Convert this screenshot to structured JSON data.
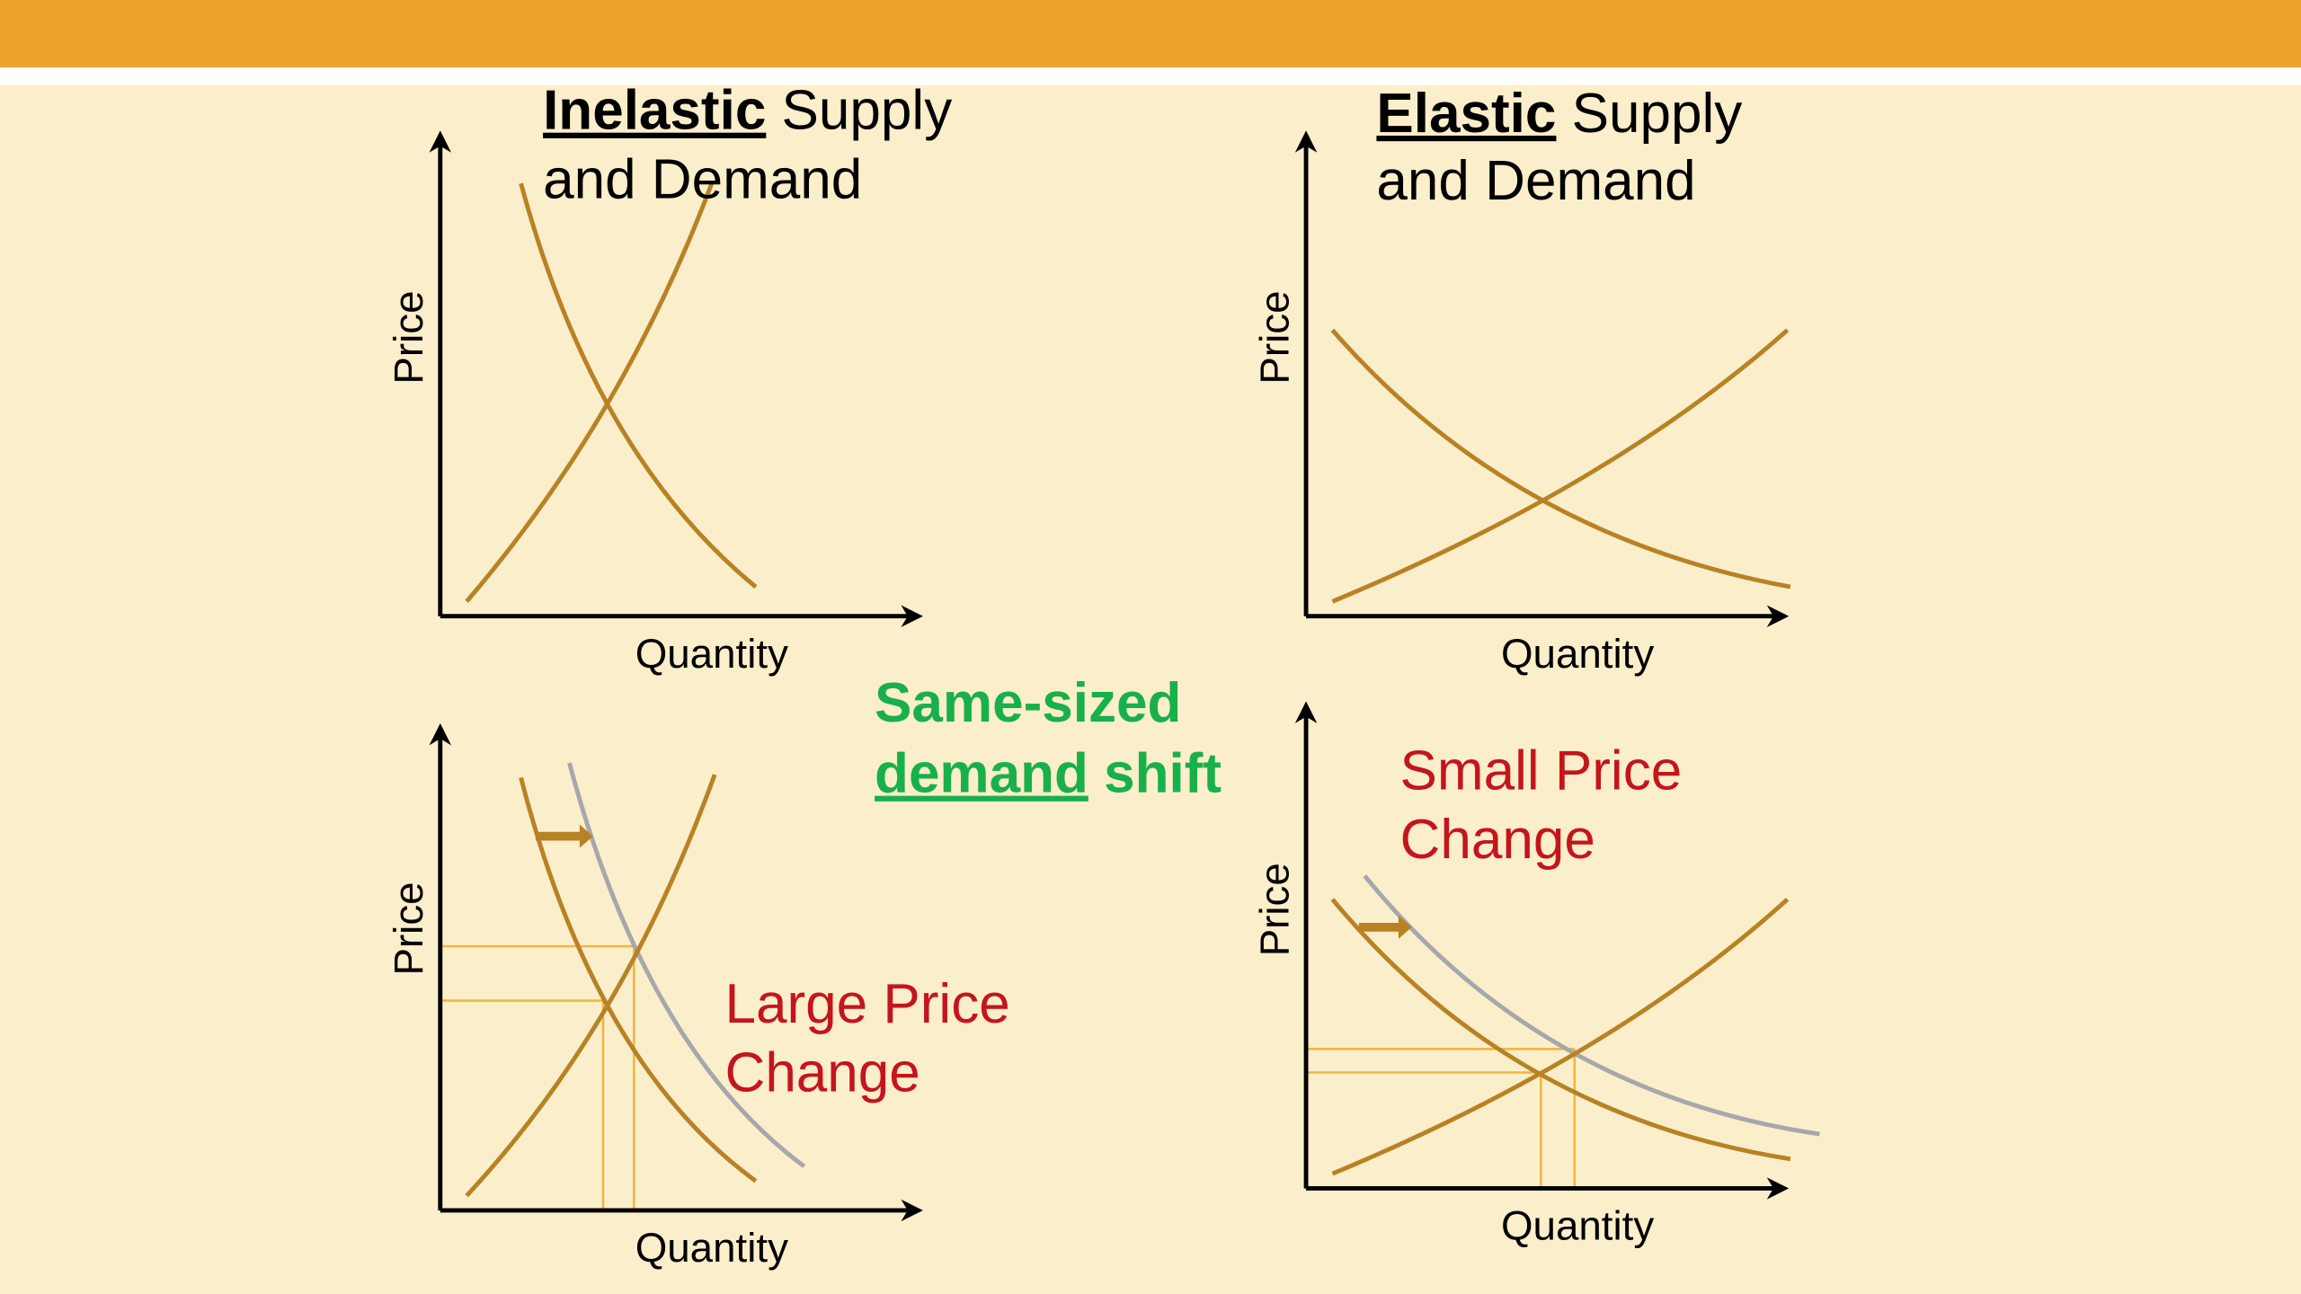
{
  "panels": [
    {
      "title_bold": "Inelastic",
      "title_rest": "Supply",
      "title_line2": "and Demand",
      "y_label": "Price",
      "x_label": "Quantity"
    },
    {
      "title_bold": "Elastic",
      "title_rest": "Supply",
      "title_line2": "and Demand",
      "y_label": "Price",
      "x_label": "Quantity"
    },
    {
      "note_line1": "Large Price",
      "note_line2": "Change",
      "y_label": "Price",
      "x_label": "Quantity"
    },
    {
      "note_line1": "Small Price",
      "note_line2": "Change",
      "y_label": "Price",
      "x_label": "Quantity"
    }
  ],
  "center_note": {
    "line1": "Same-sized",
    "line2_underlined": "demand",
    "line2_rest": "shift"
  }
}
